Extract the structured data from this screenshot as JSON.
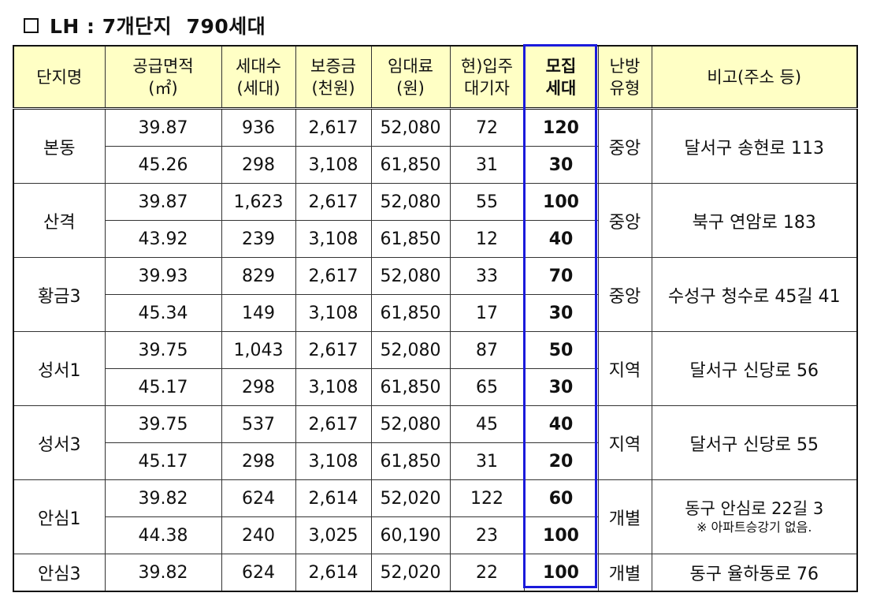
{
  "title": "LH : 7개단지  790세대",
  "headers": {
    "name": "단지명",
    "area_1": "공급면적",
    "area_2": "(㎡)",
    "units_1": "세대수",
    "units_2": "(세대)",
    "deposit_1": "보증금",
    "deposit_2": "(천원)",
    "rent_1": "임대료",
    "rent_2": "(원)",
    "waiting_1": "현)입주",
    "waiting_2": "대기자",
    "recruit_1": "모집",
    "recruit_2": "세대",
    "heating_1": "난방",
    "heating_2": "유형",
    "note": "비고(주소 등)"
  },
  "complexes": [
    {
      "name": "본동",
      "heating": "중앙",
      "note": "달서구 송현로 113",
      "note_sub": "",
      "rows": [
        {
          "area": "39.87",
          "units": "936",
          "deposit": "2,617",
          "rent": "52,080",
          "waiting": "72",
          "recruit": "120"
        },
        {
          "area": "45.26",
          "units": "298",
          "deposit": "3,108",
          "rent": "61,850",
          "waiting": "31",
          "recruit": "30"
        }
      ]
    },
    {
      "name": "산격",
      "heating": "중앙",
      "note": "북구 연암로 183",
      "note_sub": "",
      "rows": [
        {
          "area": "39.87",
          "units": "1,623",
          "deposit": "2,617",
          "rent": "52,080",
          "waiting": "55",
          "recruit": "100"
        },
        {
          "area": "43.92",
          "units": "239",
          "deposit": "3,108",
          "rent": "61,850",
          "waiting": "12",
          "recruit": "40"
        }
      ]
    },
    {
      "name": "황금3",
      "heating": "중앙",
      "note": "수성구 청수로 45길 41",
      "note_sub": "",
      "rows": [
        {
          "area": "39.93",
          "units": "829",
          "deposit": "2,617",
          "rent": "52,080",
          "waiting": "33",
          "recruit": "70"
        },
        {
          "area": "45.34",
          "units": "149",
          "deposit": "3,108",
          "rent": "61,850",
          "waiting": "17",
          "recruit": "30"
        }
      ]
    },
    {
      "name": "성서1",
      "heating": "지역",
      "note": "달서구 신당로 56",
      "note_sub": "",
      "rows": [
        {
          "area": "39.75",
          "units": "1,043",
          "deposit": "2,617",
          "rent": "52,080",
          "waiting": "87",
          "recruit": "50"
        },
        {
          "area": "45.17",
          "units": "298",
          "deposit": "3,108",
          "rent": "61,850",
          "waiting": "65",
          "recruit": "30"
        }
      ]
    },
    {
      "name": "성서3",
      "heating": "지역",
      "note": "달서구 신당로 55",
      "note_sub": "",
      "rows": [
        {
          "area": "39.75",
          "units": "537",
          "deposit": "2,617",
          "rent": "52,080",
          "waiting": "45",
          "recruit": "40"
        },
        {
          "area": "45.17",
          "units": "298",
          "deposit": "3,108",
          "rent": "61,850",
          "waiting": "31",
          "recruit": "20"
        }
      ]
    },
    {
      "name": "안심1",
      "heating": "개별",
      "note": "동구 안심로 22길 3",
      "note_sub": "※ 아파트승강기 없음.",
      "rows": [
        {
          "area": "39.82",
          "units": "624",
          "deposit": "2,614",
          "rent": "52,020",
          "waiting": "122",
          "recruit": "60"
        },
        {
          "area": "44.38",
          "units": "240",
          "deposit": "3,025",
          "rent": "60,190",
          "waiting": "23",
          "recruit": "100"
        }
      ]
    },
    {
      "name": "안심3",
      "heating": "개별",
      "note": "동구 율하동로 76",
      "note_sub": "",
      "rows": [
        {
          "area": "39.82",
          "units": "624",
          "deposit": "2,614",
          "rent": "52,020",
          "waiting": "22",
          "recruit": "100"
        }
      ]
    }
  ],
  "colors": {
    "header_bg": "#ffffc5",
    "highlight_border": "#1a1adb"
  }
}
